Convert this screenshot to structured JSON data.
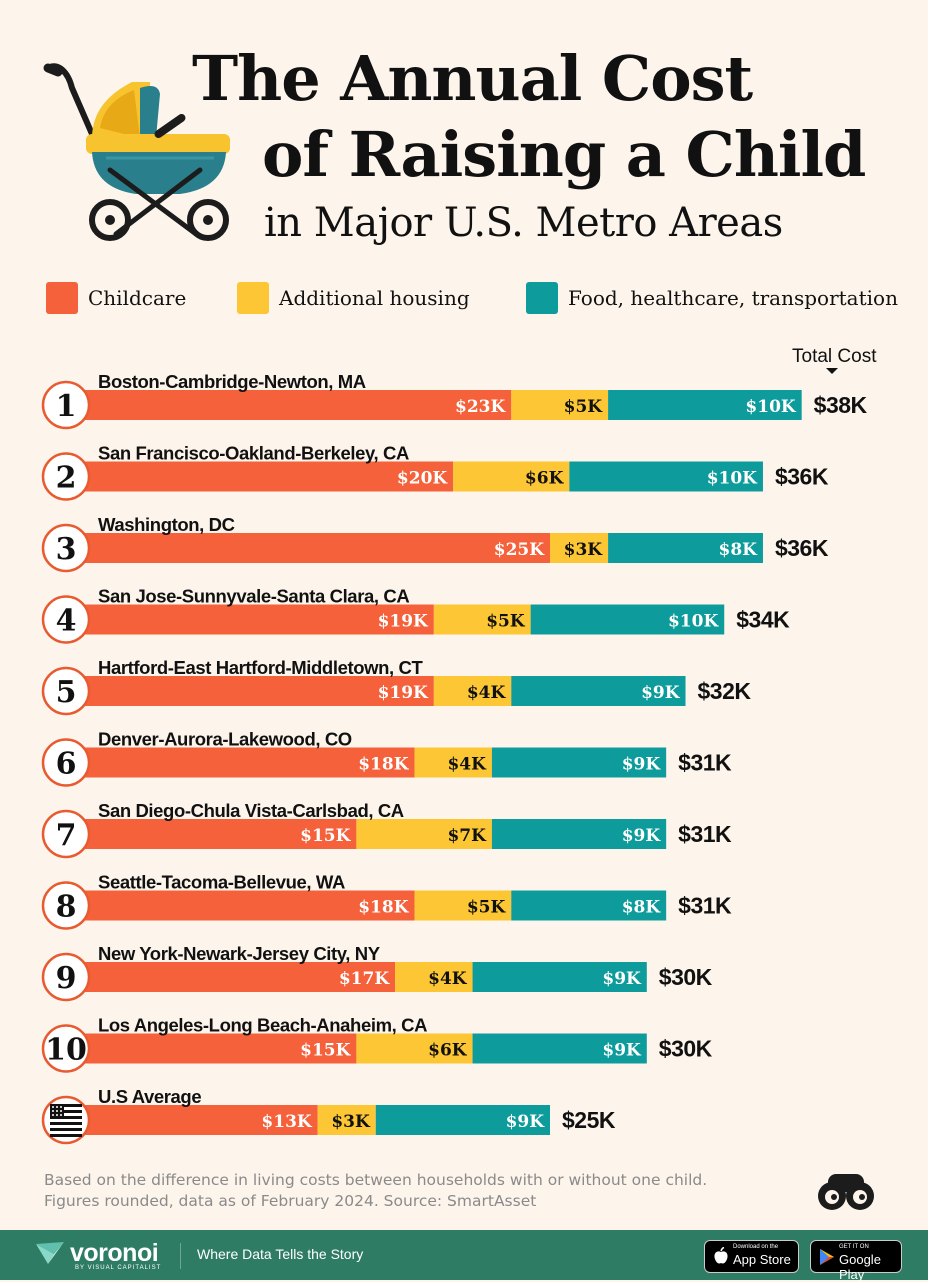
{
  "title": {
    "line1": "The Annual Cost",
    "line2": "of Raising a Child",
    "subtitle": "in Major U.S. Metro Areas"
  },
  "legend": [
    {
      "label": "Childcare",
      "color": "#f4613a"
    },
    {
      "label": "Additional housing",
      "color": "#fcc634"
    },
    {
      "label": "Food, healthcare, transportation",
      "color": "#0e9b9b"
    }
  ],
  "total_header": "Total Cost",
  "chart_data": {
    "type": "bar",
    "orientation": "horizontal",
    "stacked": true,
    "unit": "$K per year",
    "series_names": [
      "Childcare",
      "Additional housing",
      "Food, healthcare, transportation"
    ],
    "colors": [
      "#f4613a",
      "#fcc634",
      "#0e9b9b"
    ],
    "rows": [
      {
        "rank": "1",
        "name": "Boston-Cambridge-Newton, MA",
        "values": [
          23,
          5,
          10
        ],
        "labels": [
          "$23K",
          "$5K",
          "$10K"
        ],
        "total": 38,
        "total_label": "$38K"
      },
      {
        "rank": "2",
        "name": "San Francisco-Oakland-Berkeley, CA",
        "values": [
          20,
          6,
          10
        ],
        "labels": [
          "$20K",
          "$6K",
          "$10K"
        ],
        "total": 36,
        "total_label": "$36K"
      },
      {
        "rank": "3",
        "name": "Washington, DC",
        "values": [
          25,
          3,
          8
        ],
        "labels": [
          "$25K",
          "$3K",
          "$8K"
        ],
        "total": 36,
        "total_label": "$36K"
      },
      {
        "rank": "4",
        "name": "San Jose-Sunnyvale-Santa Clara, CA",
        "values": [
          19,
          5,
          10
        ],
        "labels": [
          "$19K",
          "$5K",
          "$10K"
        ],
        "total": 34,
        "total_label": "$34K"
      },
      {
        "rank": "5",
        "name": "Hartford-East Hartford-Middletown, CT",
        "values": [
          19,
          4,
          9
        ],
        "labels": [
          "$19K",
          "$4K",
          "$9K"
        ],
        "total": 32,
        "total_label": "$32K"
      },
      {
        "rank": "6",
        "name": "Denver-Aurora-Lakewood, CO",
        "values": [
          18,
          4,
          9
        ],
        "labels": [
          "$18K",
          "$4K",
          "$9K"
        ],
        "total": 31,
        "total_label": "$31K"
      },
      {
        "rank": "7",
        "name": "San Diego-Chula Vista-Carlsbad, CA",
        "values": [
          15,
          7,
          9
        ],
        "labels": [
          "$15K",
          "$7K",
          "$9K"
        ],
        "total": 31,
        "total_label": "$31K"
      },
      {
        "rank": "8",
        "name": "Seattle-Tacoma-Bellevue, WA",
        "values": [
          18,
          5,
          8
        ],
        "labels": [
          "$18K",
          "$5K",
          "$8K"
        ],
        "total": 31,
        "total_label": "$31K"
      },
      {
        "rank": "9",
        "name": "New York-Newark-Jersey City, NY",
        "values": [
          17,
          4,
          9
        ],
        "labels": [
          "$17K",
          "$4K",
          "$9K"
        ],
        "total": 30,
        "total_label": "$30K"
      },
      {
        "rank": "10",
        "name": "Los Angeles-Long Beach-Anaheim, CA",
        "values": [
          15,
          6,
          9
        ],
        "labels": [
          "$15K",
          "$6K",
          "$9K"
        ],
        "total": 30,
        "total_label": "$30K"
      },
      {
        "rank": "",
        "icon": "us-flag-icon",
        "name": "U.S Average",
        "values": [
          13,
          3,
          9
        ],
        "labels": [
          "$13K",
          "$3K",
          "$9K"
        ],
        "total": 25,
        "total_label": "$25K"
      }
    ]
  },
  "footnote": "Based on the difference in living costs between households with or without one child. Figures rounded, data as of February 2024. Source: SmartAsset",
  "footer": {
    "brand": "voronoi",
    "brand_sub": "BY VISUAL CAPITALIST",
    "tagline": "Where Data Tells the Story",
    "app_store_small": "Download on the",
    "app_store": "App Store",
    "google_play_small": "GET IT ON",
    "google_play": "Google Play",
    "background": "#2f7c64"
  },
  "icons": [
    "stroller-icon",
    "us-flag-icon",
    "voronoi-logo-icon",
    "binoculars-icon",
    "apple-icon",
    "play-icon"
  ]
}
